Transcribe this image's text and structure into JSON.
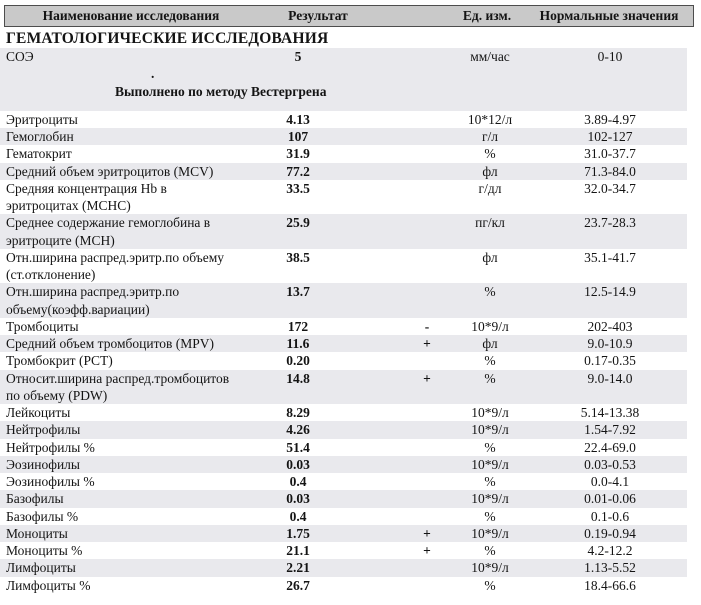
{
  "header": {
    "name": "Наименование исследования",
    "result": "Результат",
    "unit": "Ед. изм.",
    "normal": "Нормальные значения"
  },
  "section_title": "ГЕМАТОЛОГИЧЕСКИЕ ИССЛЕДОВАНИЯ",
  "esr_block": {
    "row": {
      "name": "СОЭ",
      "result": "5",
      "flag": "",
      "unit": "мм/час",
      "range": "0-10"
    },
    "dot": ".",
    "method_note": "Выполнено по методу Вестергрена"
  },
  "table": {
    "rows": [
      {
        "name": "Эритроциты",
        "result": "4.13",
        "flag": "",
        "unit": "10*12/л",
        "range": "3.89-4.97"
      },
      {
        "name": "Гемоглобин",
        "result": "107",
        "flag": "",
        "unit": "г/л",
        "range": "102-127"
      },
      {
        "name": "Гематокрит",
        "result": "31.9",
        "flag": "",
        "unit": "%",
        "range": "31.0-37.7"
      },
      {
        "name": "Средний объем эритроцитов (MCV)",
        "result": "77.2",
        "flag": "",
        "unit": "фл",
        "range": "71.3-84.0"
      },
      {
        "name": "Средняя концентрация Hb в\nэритроцитах (MCHC)",
        "result": "33.5",
        "flag": "",
        "unit": "г/дл",
        "range": "32.0-34.7"
      },
      {
        "name": "Среднее содержание гемоглобина в\nэритроците (MCH)",
        "result": "25.9",
        "flag": "",
        "unit": "пг/кл",
        "range": "23.7-28.3"
      },
      {
        "name": "Отн.ширина распред.эритр.по объему\n(ст.отклонение)",
        "result": "38.5",
        "flag": "",
        "unit": "фл",
        "range": "35.1-41.7"
      },
      {
        "name": "Отн.ширина распред.эритр.по\nобъему(коэфф.вариации)",
        "result": "13.7",
        "flag": "",
        "unit": "%",
        "range": "12.5-14.9"
      },
      {
        "name": "Тромбоциты",
        "result": "172",
        "flag": "-",
        "unit": "10*9/л",
        "range": "202-403"
      },
      {
        "name": "Средний объем тромбоцитов (MPV)",
        "result": "11.6",
        "flag": "+",
        "unit": "фл",
        "range": "9.0-10.9"
      },
      {
        "name": "Тромбокрит (PCT)",
        "result": "0.20",
        "flag": "",
        "unit": "%",
        "range": "0.17-0.35"
      },
      {
        "name": "Относит.ширина распред.тромбоцитов\nпо объему (PDW)",
        "result": "14.8",
        "flag": "+",
        "unit": "%",
        "range": "9.0-14.0"
      },
      {
        "name": "Лейкоциты",
        "result": "8.29",
        "flag": "",
        "unit": "10*9/л",
        "range": "5.14-13.38"
      },
      {
        "name": "Нейтрофилы",
        "result": "4.26",
        "flag": "",
        "unit": "10*9/л",
        "range": "1.54-7.92"
      },
      {
        "name": "Нейтрофилы %",
        "result": "51.4",
        "flag": "",
        "unit": "%",
        "range": "22.4-69.0"
      },
      {
        "name": "Эозинофилы",
        "result": "0.03",
        "flag": "",
        "unit": "10*9/л",
        "range": "0.03-0.53"
      },
      {
        "name": "Эозинофилы %",
        "result": "0.4",
        "flag": "",
        "unit": "%",
        "range": "0.0-4.1"
      },
      {
        "name": "Базофилы",
        "result": "0.03",
        "flag": "",
        "unit": "10*9/л",
        "range": "0.01-0.06"
      },
      {
        "name": "Базофилы %",
        "result": "0.4",
        "flag": "",
        "unit": "%",
        "range": "0.1-0.6"
      },
      {
        "name": "Моноциты",
        "result": "1.75",
        "flag": "+",
        "unit": "10*9/л",
        "range": "0.19-0.94"
      },
      {
        "name": "Моноциты %",
        "result": "21.1",
        "flag": "+",
        "unit": "%",
        "range": "4.2-12.2"
      },
      {
        "name": "Лимфоциты",
        "result": "2.21",
        "flag": "",
        "unit": "10*9/л",
        "range": "1.13-5.52"
      },
      {
        "name": "Лимфоциты %",
        "result": "26.7",
        "flag": "",
        "unit": "%",
        "range": "18.4-66.6"
      }
    ]
  },
  "colors": {
    "header_bg": "#c9c9c9",
    "stripe_bg": "#e9e9ed",
    "border": "#4d4d4d",
    "text": "#141414"
  }
}
